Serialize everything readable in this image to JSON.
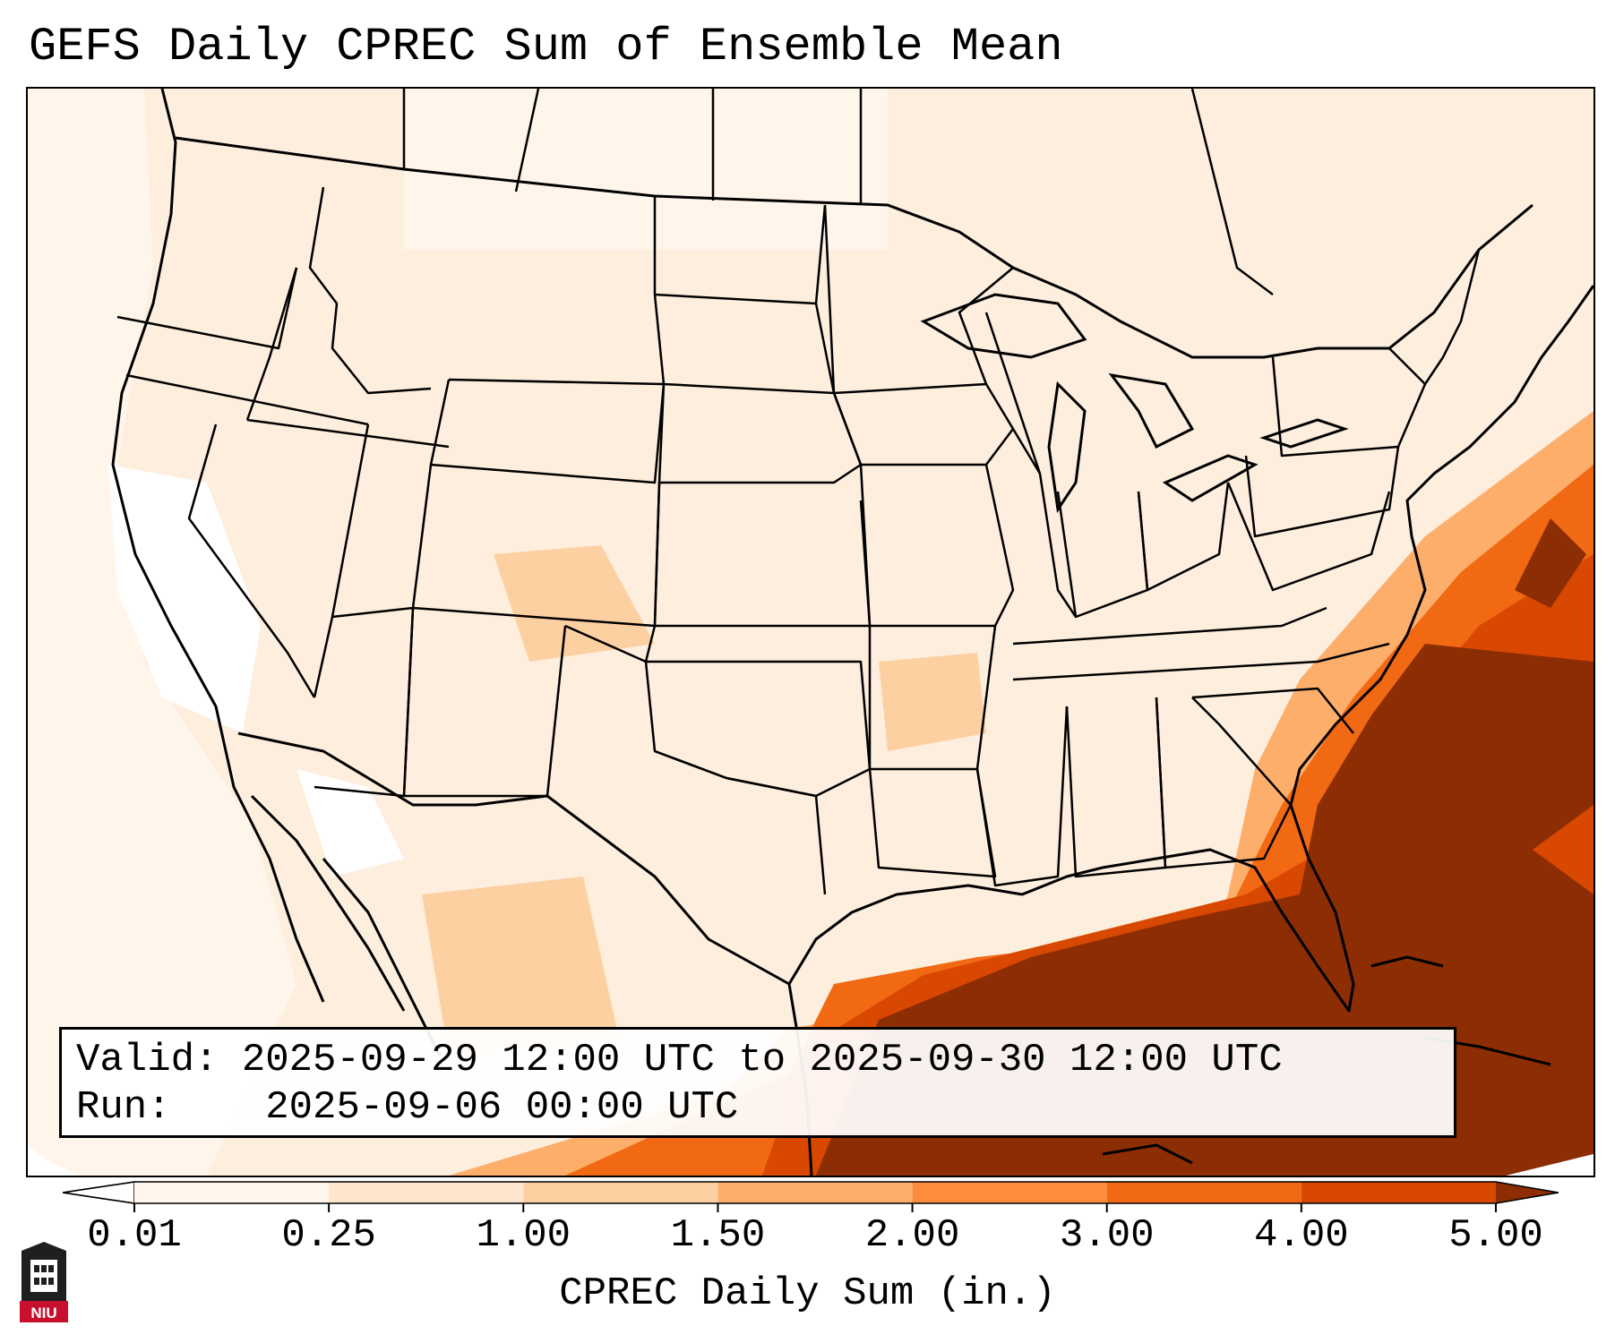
{
  "title": "GEFS Daily CPREC Sum of Ensemble Mean",
  "info": {
    "valid_label": "Valid:",
    "valid_value": "2025-09-29 12:00 UTC to 2025-09-30 12:00 UTC",
    "run_label": "Run:",
    "run_value": "2025-09-06 00:00 UTC"
  },
  "colorbar": {
    "label": "CPREC Daily Sum (in.)",
    "ticks": [
      "0.01",
      "0.25",
      "1.00",
      "1.50",
      "2.00",
      "3.00",
      "4.00",
      "5.00"
    ],
    "colors": [
      "#fff5eb",
      "#fee6ce",
      "#fdd0a2",
      "#fdae6b",
      "#fd8d3c",
      "#f16913",
      "#d94801",
      "#8c2d04"
    ],
    "extend": "both"
  },
  "logo": {
    "text": "NIU",
    "icon": "niu-logo-icon"
  },
  "map": {
    "region": "CONUS",
    "features": [
      "state-borders",
      "coastlines",
      "great-lakes"
    ],
    "heaviest_precip_region": "Gulf of Mexico / Florida / western Atlantic"
  }
}
